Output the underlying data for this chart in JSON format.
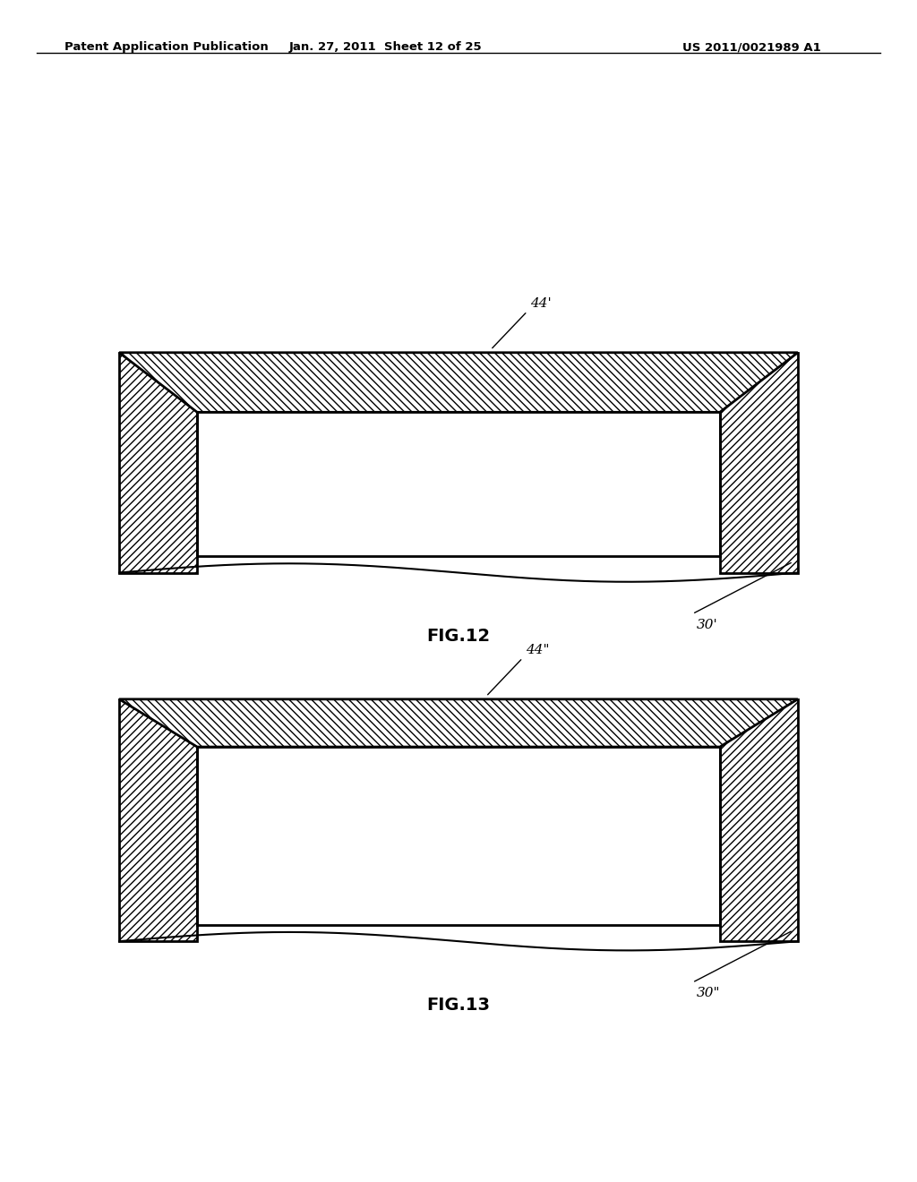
{
  "header_left": "Patent Application Publication",
  "header_mid": "Jan. 27, 2011  Sheet 12 of 25",
  "header_right": "US 2011/0021989 A1",
  "fig12_label": "FIG.12",
  "fig13_label": "FIG.13",
  "label_44_prime": "44'",
  "label_30_prime": "30'",
  "label_44_double": "44\"",
  "label_30_double": "30\"",
  "bg_color": "#ffffff",
  "line_color": "#000000"
}
